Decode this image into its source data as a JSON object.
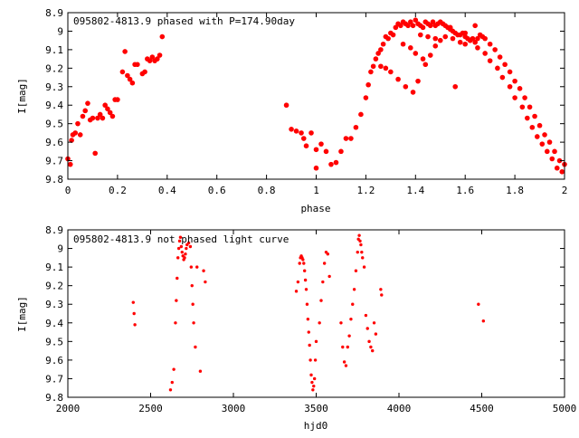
{
  "chart_data": [
    {
      "type": "scatter",
      "title": "095802-4813.9 phased with P=174.90day",
      "xlabel": "phase",
      "ylabel": "I[mag]",
      "xlim": [
        0,
        2
      ],
      "ylim": [
        9.8,
        8.9
      ],
      "y_inverted": true,
      "grid": false,
      "marker_color": "#ff0000",
      "x_ticks": [
        "0",
        "0.2",
        "0.4",
        "0.6",
        "0.8",
        "1",
        "1.2",
        "1.4",
        "1.6",
        "1.8",
        "2"
      ],
      "y_ticks": [
        "8.9",
        "9",
        "9.1",
        "9.2",
        "9.3",
        "9.4",
        "9.5",
        "9.6",
        "9.7",
        "9.8"
      ],
      "series": [
        {
          "x": [
            0.0,
            0.01,
            0.015,
            0.02,
            0.03,
            0.04,
            0.05,
            0.06,
            0.07,
            0.08,
            0.09,
            0.1,
            0.11,
            0.12,
            0.13,
            0.14,
            0.15,
            0.16,
            0.17,
            0.18,
            0.19,
            0.2,
            0.22,
            0.23,
            0.24,
            0.25,
            0.26,
            0.27,
            0.28,
            0.3,
            0.31,
            0.32,
            0.33,
            0.34,
            0.35,
            0.36,
            0.37,
            0.38,
            0.88,
            0.9,
            0.92,
            0.94,
            0.95,
            0.96,
            0.98,
            1.0,
            1.0,
            1.02,
            1.04,
            1.06,
            1.08,
            1.1,
            1.12,
            1.14,
            1.16,
            1.18,
            1.2,
            1.21,
            1.22,
            1.23,
            1.24,
            1.25,
            1.26,
            1.27,
            1.28,
            1.29,
            1.3,
            1.31,
            1.32,
            1.33,
            1.34,
            1.35,
            1.36,
            1.37,
            1.38,
            1.39,
            1.4,
            1.41,
            1.42,
            1.43,
            1.44,
            1.45,
            1.46,
            1.47,
            1.48,
            1.49,
            1.5,
            1.51,
            1.52,
            1.53,
            1.54,
            1.55,
            1.56,
            1.57,
            1.58,
            1.59,
            1.6,
            1.61,
            1.62,
            1.63,
            1.64,
            1.65,
            1.66,
            1.67,
            1.68,
            1.7,
            1.72,
            1.74,
            1.76,
            1.78,
            1.8,
            1.82,
            1.84,
            1.86,
            1.88,
            1.9,
            1.92,
            1.94,
            1.96,
            1.98,
            2.0,
            1.42,
            1.45,
            1.48,
            1.5,
            1.52,
            1.55,
            1.58,
            1.6,
            1.35,
            1.38,
            1.4,
            1.43,
            1.46,
            1.26,
            1.28,
            1.3,
            1.33,
            1.36,
            1.39,
            1.62,
            1.65,
            1.68,
            1.7,
            1.73,
            1.75,
            1.78,
            1.8,
            1.83,
            1.85,
            1.87,
            1.89,
            1.91,
            1.93,
            1.95,
            1.97,
            1.99,
            1.56,
            1.6,
            1.64,
            1.54,
            1.48,
            1.44,
            1.41
          ],
          "y": [
            9.69,
            9.72,
            9.59,
            9.56,
            9.55,
            9.5,
            9.56,
            9.46,
            9.43,
            9.39,
            9.48,
            9.47,
            9.66,
            9.47,
            9.45,
            9.47,
            9.4,
            9.42,
            9.44,
            9.46,
            9.37,
            9.37,
            9.22,
            9.11,
            9.24,
            9.26,
            9.28,
            9.18,
            9.18,
            9.23,
            9.22,
            9.15,
            9.16,
            9.14,
            9.16,
            9.15,
            9.13,
            9.03,
            9.4,
            9.53,
            9.54,
            9.55,
            9.58,
            9.62,
            9.55,
            9.64,
            9.74,
            9.61,
            9.65,
            9.72,
            9.71,
            9.65,
            9.58,
            9.58,
            9.52,
            9.45,
            9.36,
            9.29,
            9.22,
            9.19,
            9.15,
            9.12,
            9.1,
            9.07,
            9.03,
            9.04,
            9.01,
            9.02,
            8.98,
            8.96,
            8.97,
            8.95,
            8.96,
            8.97,
            8.95,
            8.97,
            8.94,
            8.96,
            8.97,
            8.98,
            8.95,
            8.96,
            8.97,
            8.95,
            8.97,
            8.96,
            8.95,
            8.96,
            8.97,
            8.98,
            8.99,
            9.0,
            9.01,
            9.02,
            9.02,
            9.01,
            9.03,
            9.04,
            9.05,
            9.04,
            9.06,
            9.04,
            9.02,
            9.03,
            9.04,
            9.07,
            9.1,
            9.14,
            9.18,
            9.22,
            9.27,
            9.31,
            9.36,
            9.41,
            9.46,
            9.51,
            9.56,
            9.6,
            9.65,
            9.7,
            9.72,
            9.02,
            9.03,
            9.04,
            9.05,
            9.03,
            9.04,
            9.06,
            9.07,
            9.07,
            9.09,
            9.12,
            9.15,
            9.13,
            9.19,
            9.2,
            9.22,
            9.26,
            9.3,
            9.33,
            9.05,
            9.09,
            9.12,
            9.16,
            9.2,
            9.25,
            9.3,
            9.36,
            9.41,
            9.47,
            9.52,
            9.57,
            9.61,
            9.65,
            9.69,
            9.74,
            9.76,
            9.3,
            9.01,
            8.97,
            8.98,
            9.08,
            9.18,
            9.27
          ]
        }
      ]
    },
    {
      "type": "scatter",
      "title": "095802-4813.9 not phased light curve",
      "xlabel": "hjd0",
      "ylabel": "I[mag]",
      "xlim": [
        2000,
        5000
      ],
      "ylim": [
        9.8,
        8.9
      ],
      "y_inverted": true,
      "grid": false,
      "marker_color": "#ff0000",
      "x_ticks": [
        "2000",
        "2500",
        "3000",
        "3500",
        "4000",
        "4500",
        "5000"
      ],
      "y_ticks": [
        "8.9",
        "9",
        "9.1",
        "9.2",
        "9.3",
        "9.4",
        "9.5",
        "9.6",
        "9.7",
        "9.8"
      ],
      "series": [
        {
          "x": [
            2395,
            2400,
            2405,
            2620,
            2630,
            2640,
            2650,
            2655,
            2660,
            2665,
            2670,
            2675,
            2680,
            2685,
            2690,
            2695,
            2700,
            2705,
            2710,
            2715,
            2720,
            2730,
            2740,
            2745,
            2750,
            2755,
            2760,
            2770,
            2780,
            2800,
            2820,
            2830,
            3380,
            3390,
            3400,
            3405,
            3410,
            3415,
            3420,
            3425,
            3430,
            3435,
            3440,
            3445,
            3450,
            3455,
            3460,
            3465,
            3470,
            3475,
            3480,
            3485,
            3490,
            3495,
            3500,
            3520,
            3530,
            3540,
            3550,
            3560,
            3570,
            3580,
            3650,
            3660,
            3670,
            3680,
            3690,
            3700,
            3710,
            3720,
            3730,
            3740,
            3750,
            3755,
            3760,
            3765,
            3770,
            3775,
            3780,
            3790,
            3800,
            3810,
            3820,
            3830,
            3840,
            3850,
            3860,
            3890,
            3895,
            4480,
            4510
          ],
          "y": [
            9.29,
            9.35,
            9.41,
            9.76,
            9.72,
            9.65,
            9.4,
            9.28,
            9.16,
            9.05,
            9.0,
            8.96,
            8.94,
            8.99,
            9.02,
            9.04,
            9.06,
            9.05,
            9.03,
            9.0,
            8.98,
            8.97,
            8.99,
            9.1,
            9.2,
            9.3,
            9.4,
            9.53,
            9.1,
            9.66,
            9.12,
            9.18,
            9.23,
            9.18,
            9.08,
            9.05,
            9.04,
            9.05,
            9.06,
            9.08,
            9.12,
            9.17,
            9.22,
            9.3,
            9.38,
            9.45,
            9.52,
            9.6,
            9.68,
            9.72,
            9.76,
            9.74,
            9.7,
            9.6,
            9.5,
            9.4,
            9.28,
            9.18,
            9.08,
            9.02,
            9.03,
            9.15,
            9.4,
            9.53,
            9.61,
            9.63,
            9.53,
            9.47,
            9.38,
            9.3,
            9.22,
            9.12,
            9.02,
            8.95,
            8.93,
            8.96,
            8.98,
            9.02,
            9.05,
            9.1,
            9.36,
            9.43,
            9.5,
            9.53,
            9.55,
            9.4,
            9.46,
            9.22,
            9.25,
            9.3,
            9.39
          ]
        }
      ]
    }
  ]
}
